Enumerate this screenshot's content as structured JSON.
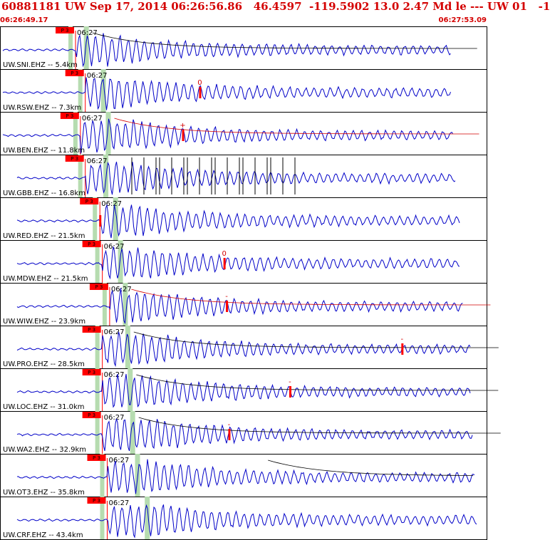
{
  "header": {
    "title": "60881181 UW Sep 17, 2014 06:26:56.86   46.4597  -119.5902 13.0 2.47 Md le --- UW 01   -1",
    "start_time": "06:26:49.17",
    "end_time": "06:27:53.09"
  },
  "colors": {
    "trace": "#0000c8",
    "pick_flag": "#ff0000",
    "pick_window": "#b6dcb0",
    "header_text": "#d40000",
    "decay_curve": "#000000",
    "coda_curve": "#d40000"
  },
  "chart_data": {
    "type": "line",
    "title": "60881181 UW Sep 17, 2014 06:26:56.86   46.4597  -119.5902 13.0 2.47 Md le --- UW 01   -1",
    "x_range": [
      "06:26:49.17",
      "06:27:53.09"
    ],
    "grid": false,
    "tick_label": "06:27",
    "series": [
      {
        "name": "UW.SNI.EHZ -- 5.4km",
        "label": "UW.SNI.EHZ -- 5.4km",
        "pick": "P 3",
        "amp_mark": "",
        "tick": "06:27",
        "onset": 0.155,
        "first_peak": 0.175,
        "end": 0.925,
        "decay": "black"
      },
      {
        "name": "UW.RSW.EHZ -- 7.3km",
        "label": "UW.RSW.EHZ -- 7.3km",
        "pick": "P 3",
        "amp_mark": "0",
        "tick": "06:27",
        "onset": 0.175,
        "first_peak": 0.21,
        "end": 0.925,
        "decay": "none",
        "amp_x": 0.41
      },
      {
        "name": "UW.BEN.EHZ -- 11.8km",
        "label": "UW.BEN.EHZ -- 11.8km",
        "pick": "P 3",
        "amp_mark": "+",
        "tick": "06:27",
        "onset": 0.165,
        "first_peak": 0.22,
        "end": 0.93,
        "decay": "red",
        "amp_x": 0.375
      },
      {
        "name": "UW.GBB.EHZ -- 16.8km",
        "label": "UW.GBB.EHZ -- 16.8km",
        "pick": "P 3",
        "amp_mark": "",
        "tick": "06:27",
        "onset": 0.175,
        "first_peak": 0.215,
        "end": 0.935,
        "decay": "none",
        "spikes": true
      },
      {
        "name": "UW.RED.EHZ -- 21.5km",
        "label": "UW.RED.EHZ -- 21.5km",
        "pick": "P 3",
        "amp_mark": "",
        "tick": "06:27",
        "onset": 0.205,
        "first_peak": 0.235,
        "end": 0.945,
        "decay": "none",
        "amp_x": 0.205
      },
      {
        "name": "UW.MDW.EHZ -- 21.5km",
        "label": "UW.MDW.EHZ -- 21.5km",
        "pick": "P 3",
        "amp_mark": "0",
        "tick": "06:27",
        "onset": 0.21,
        "first_peak": 0.245,
        "end": 0.945,
        "decay": "none",
        "amp_x": 0.46
      },
      {
        "name": "UW.WIW.EHZ -- 23.9km",
        "label": "UW.WIW.EHZ -- 23.9km",
        "pick": "P 3",
        "amp_mark": "-",
        "tick": "06:27",
        "onset": 0.225,
        "first_peak": 0.255,
        "end": 0.95,
        "decay": "red",
        "amp_x": 0.465
      },
      {
        "name": "UW.PRO.EHZ -- 28.5km",
        "label": "UW.PRO.EHZ -- 28.5km",
        "pick": "P 3",
        "amp_mark": "-",
        "tick": "06:27",
        "onset": 0.21,
        "first_peak": 0.26,
        "end": 0.965,
        "decay": "black",
        "amp_x": 0.825
      },
      {
        "name": "UW.LOC.EHZ -- 31.0km",
        "label": "UW.LOC.EHZ -- 31.0km",
        "pick": "P 3",
        "amp_mark": "-",
        "tick": "06:27",
        "onset": 0.21,
        "first_peak": 0.265,
        "end": 0.965,
        "decay": "black",
        "amp_x": 0.595
      },
      {
        "name": "UW.WA2.EHZ -- 32.9km",
        "label": "UW.WA2.EHZ -- 32.9km",
        "pick": "P 3",
        "amp_mark": "-",
        "tick": "06:27",
        "onset": 0.21,
        "first_peak": 0.27,
        "end": 0.97,
        "decay": "black",
        "amp_x": 0.47
      },
      {
        "name": "UW.OT3.EHZ -- 35.8km",
        "label": "UW.OT3.EHZ -- 35.8km",
        "pick": "P 3",
        "amp_mark": "",
        "tick": "06:27",
        "onset": 0.22,
        "first_peak": 0.28,
        "end": 0.975,
        "decay": "black_late"
      },
      {
        "name": "UW.CRF.EHZ -- 43.4km",
        "label": "UW.CRF.EHZ -- 43.4km",
        "pick": "P 3",
        "amp_mark": "",
        "tick": "06:27",
        "onset": 0.22,
        "first_peak": 0.3,
        "end": 0.98,
        "decay": "none"
      }
    ]
  }
}
